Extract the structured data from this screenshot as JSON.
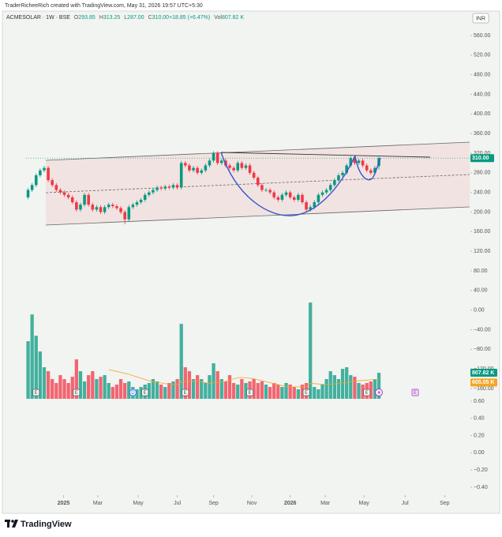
{
  "header": {
    "credit": "TraderRicheeRich created with TradingView.com, May 31, 2026 19:57 UTC+5:30",
    "symbol": "ACMESOLAR · 1W · BSE",
    "ohlc": [
      {
        "k": "O",
        "v": "293.85"
      },
      {
        "k": "H",
        "v": "313.25"
      },
      {
        "k": "L",
        "v": "287.00"
      },
      {
        "k": "C",
        "v": "310.00"
      },
      {
        "k": "",
        "v": "+18.85 (+6.47%)"
      },
      {
        "k": "Vol",
        "v": "807.82 K"
      }
    ],
    "currency": "INR",
    "brand": "TradingView"
  },
  "chart_data": [
    {
      "type": "candlestick",
      "up_color": "#089981",
      "down_color": "#f23645",
      "xlim": [
        -0.5,
        109.5
      ],
      "xticks": [
        {
          "value": 8.8,
          "label": "2025"
        },
        {
          "value": 17.3,
          "label": "Mar"
        },
        {
          "value": 27.3,
          "label": "May"
        },
        {
          "value": 37,
          "label": "Jul"
        },
        {
          "value": 46,
          "label": "Sep"
        },
        {
          "value": 55.5,
          "label": "Nov"
        },
        {
          "value": 65,
          "label": "2026"
        },
        {
          "value": 73.7,
          "label": "Mar"
        },
        {
          "value": 83.3,
          "label": "May"
        },
        {
          "value": 93.5,
          "label": "Jul"
        },
        {
          "value": 103.3,
          "label": "Sep"
        }
      ],
      "ylim": [
        -160,
        560
      ],
      "yticks": [
        {
          "value": 560,
          "label": "560.00"
        },
        {
          "value": 520,
          "label": "520.00"
        },
        {
          "value": 480,
          "label": "480.00"
        },
        {
          "value": 440,
          "label": "440.00"
        },
        {
          "value": 400,
          "label": "400.00"
        },
        {
          "value": 360,
          "label": "360.00"
        },
        {
          "value": 320,
          "label": "320.00"
        },
        {
          "value": 280,
          "label": "280.00"
        },
        {
          "value": 240,
          "label": "240.00"
        },
        {
          "value": 200,
          "label": "200.00"
        },
        {
          "value": 160,
          "label": "160.00"
        },
        {
          "value": 120,
          "label": "120.00"
        },
        {
          "value": 80,
          "label": "80.00"
        },
        {
          "value": 40,
          "label": "40.00"
        },
        {
          "value": 0,
          "label": "0.00"
        },
        {
          "value": -40,
          "label": "−40.00"
        },
        {
          "value": -80,
          "label": "−80.00"
        },
        {
          "value": -120,
          "label": "−120.00"
        },
        {
          "value": -160,
          "label": "−160.00"
        }
      ],
      "y2lim": [
        -0.4,
        0.6
      ],
      "y2ticks": [
        {
          "value": 0.6,
          "label": "0.60"
        },
        {
          "value": 0.4,
          "label": "0.40"
        },
        {
          "value": 0.2,
          "label": "0.20"
        },
        {
          "value": 0,
          "label": "0.00"
        },
        {
          "value": -0.2,
          "label": "−0.20"
        },
        {
          "value": -0.4,
          "label": "−0.40"
        }
      ],
      "last_label": "310.00",
      "open": [
        230,
        245,
        255,
        275,
        285,
        290,
        265,
        255,
        245,
        240,
        235,
        230,
        220,
        205,
        215,
        235,
        215,
        205,
        210,
        200,
        210,
        215,
        212,
        208,
        200,
        185,
        210,
        215,
        220,
        225,
        235,
        240,
        245,
        250,
        248,
        252,
        250,
        255,
        250,
        300,
        295,
        285,
        290,
        280,
        285,
        295,
        305,
        320,
        300,
        305,
        295,
        290,
        285,
        300,
        290,
        295,
        280,
        270,
        255,
        245,
        245,
        240,
        230,
        225,
        235,
        240,
        230,
        225,
        235,
        220,
        205,
        210,
        220,
        235,
        240,
        245,
        255,
        265,
        275,
        280,
        295,
        310,
        300,
        305,
        295,
        285,
        280,
        293.85
      ],
      "high": [
        249,
        259,
        279,
        289,
        294,
        294,
        269,
        259,
        249,
        244,
        239,
        234,
        224,
        219,
        239,
        239,
        219,
        214,
        214,
        214,
        219,
        219,
        216,
        212,
        204,
        214,
        219,
        224,
        229,
        239,
        244,
        249,
        254,
        254,
        256,
        256,
        259,
        259,
        304,
        304,
        299,
        294,
        294,
        289,
        299,
        309,
        324,
        324,
        309,
        309,
        299,
        294,
        304,
        304,
        299,
        299,
        284,
        274,
        259,
        249,
        249,
        244,
        234,
        239,
        244,
        244,
        234,
        239,
        239,
        224,
        214,
        224,
        239,
        244,
        249,
        259,
        269,
        279,
        284,
        299,
        314,
        314,
        309,
        309,
        299,
        289,
        294,
        313.25
      ],
      "low": [
        226,
        241,
        251,
        271,
        281,
        261,
        251,
        241,
        236,
        231,
        226,
        216,
        201,
        201,
        211,
        211,
        201,
        201,
        196,
        196,
        206,
        208,
        204,
        196,
        175,
        181,
        206,
        211,
        216,
        221,
        231,
        236,
        241,
        244,
        244,
        246,
        246,
        246,
        246,
        291,
        281,
        281,
        276,
        276,
        281,
        291,
        301,
        296,
        296,
        291,
        286,
        281,
        281,
        286,
        286,
        276,
        266,
        251,
        241,
        241,
        236,
        226,
        221,
        221,
        231,
        226,
        221,
        221,
        216,
        201,
        201,
        206,
        216,
        231,
        236,
        241,
        251,
        261,
        271,
        276,
        291,
        296,
        296,
        291,
        281,
        276,
        276,
        287
      ],
      "close": [
        245,
        255,
        275,
        285,
        290,
        265,
        255,
        245,
        240,
        235,
        230,
        220,
        205,
        215,
        235,
        215,
        205,
        210,
        200,
        210,
        215,
        212,
        208,
        200,
        185,
        210,
        215,
        220,
        225,
        235,
        240,
        245,
        250,
        248,
        252,
        250,
        255,
        250,
        300,
        295,
        285,
        290,
        280,
        285,
        295,
        305,
        320,
        300,
        305,
        295,
        290,
        285,
        300,
        290,
        295,
        280,
        270,
        255,
        245,
        245,
        240,
        230,
        225,
        235,
        240,
        230,
        225,
        235,
        220,
        205,
        210,
        220,
        235,
        240,
        245,
        255,
        265,
        275,
        280,
        295,
        310,
        300,
        305,
        295,
        285,
        280,
        290,
        310
      ],
      "events": [
        {
          "at": 2,
          "label": "E"
        },
        {
          "at": 12,
          "label": "E"
        },
        {
          "at": 26,
          "label": "D"
        },
        {
          "at": 29,
          "label": "E"
        },
        {
          "at": 39,
          "label": "E"
        },
        {
          "at": 55,
          "label": "E"
        },
        {
          "at": 69,
          "label": "E"
        },
        {
          "at": 84,
          "label": "E"
        },
        {
          "at": 96,
          "label": "E"
        }
      ]
    },
    {
      "type": "volume",
      "ylim": [
        0,
        3750
      ],
      "ma_color": "#f5a623",
      "values": [
        1787,
        2619,
        1958,
        1469,
        979,
        857,
        612,
        490,
        734,
        612,
        490,
        685,
        1224,
        857,
        539,
        734,
        857,
        612,
        685,
        734,
        490,
        367,
        441,
        612,
        490,
        539,
        367,
        294,
        367,
        441,
        490,
        612,
        539,
        441,
        367,
        490,
        539,
        612,
        2326,
        979,
        857,
        612,
        734,
        612,
        490,
        734,
        1102,
        857,
        612,
        539,
        734,
        490,
        441,
        612,
        490,
        539,
        612,
        490,
        539,
        441,
        367,
        490,
        441,
        367,
        490,
        441,
        367,
        294,
        441,
        490,
        2987,
        367,
        294,
        441,
        612,
        857,
        734,
        612,
        930,
        979,
        734,
        685,
        490,
        441,
        490,
        539,
        612,
        807.82
      ],
      "last_label": "807.82 K",
      "ma": [
        null,
        null,
        null,
        null,
        null,
        null,
        null,
        null,
        null,
        null,
        null,
        null,
        null,
        null,
        null,
        null,
        null,
        null,
        null,
        null,
        906,
        880,
        850,
        820,
        790,
        760,
        720,
        680,
        640,
        600,
        560,
        530,
        510,
        490,
        470,
        455,
        445,
        440,
        520,
        540,
        550,
        545,
        540,
        520,
        500,
        480,
        500,
        510,
        520,
        540,
        580,
        620,
        650,
        661,
        650,
        640,
        620,
        590,
        560,
        530,
        500,
        470,
        440,
        410,
        390,
        375,
        367,
        370,
        370,
        375,
        480,
        470,
        460,
        450,
        440,
        450,
        460,
        470,
        490,
        510,
        530,
        550,
        560,
        570,
        580,
        590,
        600,
        605.05
      ],
      "ma_last_label": "605.05 K"
    }
  ]
}
